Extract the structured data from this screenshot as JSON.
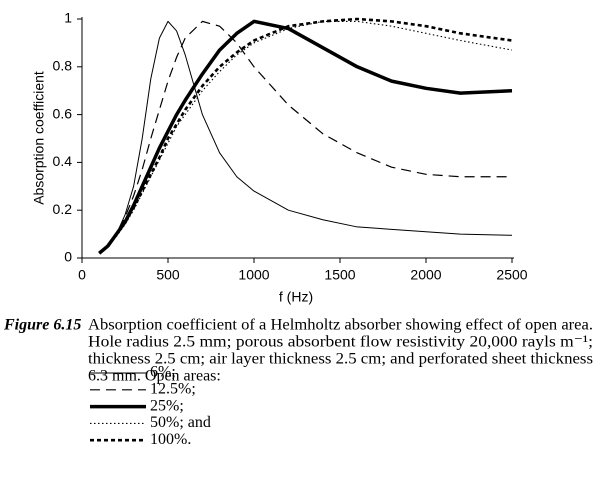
{
  "chart_data": {
    "type": "line",
    "xlabel": "f (Hz)",
    "ylabel": "Absorption coefficient",
    "x": [
      100,
      150,
      200,
      250,
      300,
      350,
      400,
      450,
      500,
      550,
      600,
      700,
      800,
      900,
      1000,
      1200,
      1400,
      1600,
      1800,
      2000,
      2200,
      2500
    ],
    "xlim": [
      0,
      2500
    ],
    "xticks": [
      0,
      500,
      1000,
      1500,
      2000,
      2500
    ],
    "ylim": [
      0,
      1
    ],
    "yticks": [
      0,
      0.2,
      0.4,
      0.6,
      0.8,
      1
    ],
    "series": [
      {
        "name": "6%;",
        "color": "#000000",
        "dash": "solid",
        "width": 1,
        "values": [
          0.02,
          0.05,
          0.1,
          0.18,
          0.3,
          0.5,
          0.75,
          0.92,
          0.99,
          0.95,
          0.85,
          0.6,
          0.44,
          0.34,
          0.28,
          0.2,
          0.16,
          0.13,
          0.12,
          0.11,
          0.1,
          0.095
        ]
      },
      {
        "name": "12.5%;",
        "color": "#000000",
        "dash": "dashed",
        "width": 1.2,
        "values": [
          0.02,
          0.05,
          0.1,
          0.17,
          0.26,
          0.37,
          0.5,
          0.62,
          0.74,
          0.84,
          0.92,
          0.99,
          0.97,
          0.9,
          0.8,
          0.64,
          0.52,
          0.44,
          0.38,
          0.35,
          0.34,
          0.34
        ]
      },
      {
        "name": "25%;",
        "color": "#000000",
        "dash": "solid",
        "width": 3.5,
        "values": [
          0.02,
          0.05,
          0.1,
          0.15,
          0.22,
          0.3,
          0.38,
          0.46,
          0.53,
          0.6,
          0.66,
          0.77,
          0.87,
          0.94,
          0.99,
          0.96,
          0.88,
          0.8,
          0.74,
          0.71,
          0.69,
          0.7
        ]
      },
      {
        "name": "50%; and",
        "color": "#000000",
        "dash": "dotted",
        "width": 1.1,
        "values": [
          0.02,
          0.05,
          0.09,
          0.14,
          0.2,
          0.27,
          0.34,
          0.41,
          0.48,
          0.55,
          0.6,
          0.7,
          0.78,
          0.85,
          0.9,
          0.96,
          0.99,
          0.99,
          0.97,
          0.94,
          0.91,
          0.87
        ]
      },
      {
        "name": "100%.",
        "color": "#000000",
        "dash": "short-dash",
        "width": 2.6,
        "values": [
          0.02,
          0.05,
          0.1,
          0.15,
          0.21,
          0.28,
          0.35,
          0.42,
          0.5,
          0.56,
          0.62,
          0.72,
          0.8,
          0.86,
          0.91,
          0.97,
          0.99,
          1.0,
          0.99,
          0.97,
          0.94,
          0.91
        ]
      }
    ]
  },
  "caption": {
    "label": "Figure 6.15",
    "lines": [
      "Absorption coefficient of a Helmholtz absorber showing effect of open area.",
      "Hole radius 2.5 mm; porous absorbent flow resistivity 20,000 rayls m⁻¹;",
      "thickness 2.5 cm; air layer thickness 2.5 cm; and perforated sheet thickness",
      "6.3 mm. Open areas:"
    ]
  }
}
